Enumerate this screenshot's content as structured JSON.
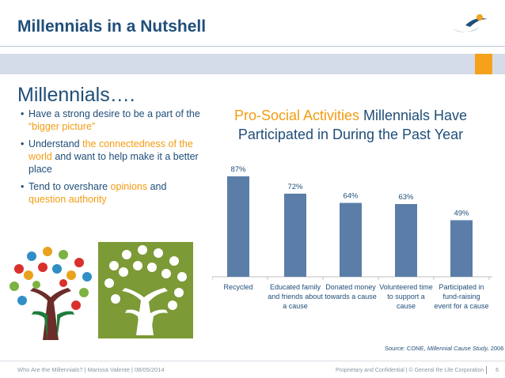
{
  "header": {
    "title": "Millennials in a Nutshell",
    "accent_color": "#1f4e79",
    "highlight_color": "#f5a11c",
    "logo_icon": "swoosh-logo-icon"
  },
  "left": {
    "section_title": "Millennials….",
    "bullets": [
      {
        "pre": "Have a strong desire to be a part of the ",
        "hl": "“bigger picture”",
        "post": ""
      },
      {
        "pre": "Understand ",
        "hl": "the connectedness of the world",
        "post": " and want to help make it a better place"
      },
      {
        "pre": "Tend to overshare ",
        "hl": "opinions",
        "mid": " and ",
        "hl2": "question authority",
        "post": ""
      }
    ],
    "images": [
      "tree-of-hands-icon",
      "tree-of-hands-green-icon"
    ]
  },
  "chart_title": {
    "highlight": "Pro-Social Activities",
    "rest": " Millennials Have Participated in During the Past Year"
  },
  "chart_data": {
    "type": "bar",
    "categories": [
      [
        "Recycled"
      ],
      [
        "Educated family",
        "and friends about",
        "a cause"
      ],
      [
        "Donated money",
        "towards a cause"
      ],
      [
        "Volunteered time",
        "to support a",
        "cause"
      ],
      [
        "Participated in",
        "fund-raising",
        "event for a cause"
      ]
    ],
    "values": [
      87,
      72,
      64,
      63,
      49
    ],
    "data_labels": [
      "87%",
      "72%",
      "64%",
      "63%",
      "49%"
    ],
    "ylim": [
      0,
      100
    ],
    "bar_color": "#5b7ea8",
    "grid": false,
    "legend": "none"
  },
  "source": {
    "prefix": "Source: CONE, ",
    "italic": "Millennial Cause Study,",
    "suffix": " 2006"
  },
  "footer": {
    "left": "Who Are the Millennials?   |   Marissa Valente   |   08/05/2014",
    "right": "Proprietary and Confidential   |   © General Re Life Corporation",
    "page": "6"
  }
}
